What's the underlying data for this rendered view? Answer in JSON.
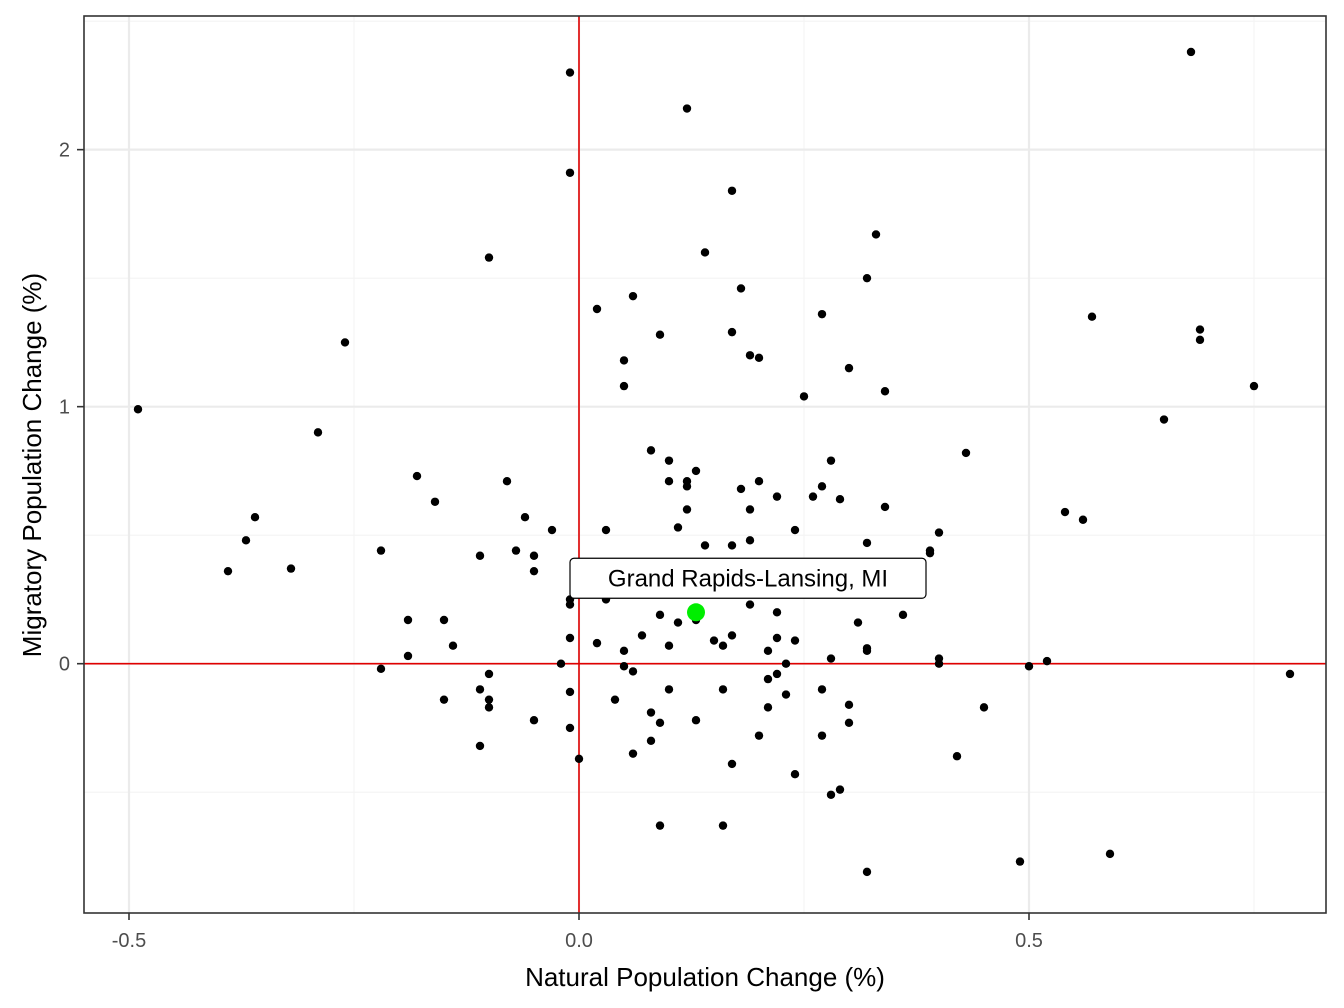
{
  "chart_data": {
    "type": "scatter",
    "title": "",
    "xlabel": "Natural Population Change (%)",
    "ylabel": "Migratory Population Change (%)",
    "xlim": [
      -0.55,
      0.83
    ],
    "ylim": [
      -0.97,
      2.52
    ],
    "x_ticks": [
      -0.5,
      0.0,
      0.5
    ],
    "x_tick_labels": [
      "-0.5",
      "0.0",
      "0.5"
    ],
    "y_ticks": [
      0,
      1,
      2
    ],
    "y_tick_labels": [
      "0",
      "1",
      "2"
    ],
    "grid": true,
    "reference_lines": {
      "x": 0,
      "y": 0,
      "color": "#e00000"
    },
    "point_color": "#000000",
    "highlight": {
      "label": "Grand Rapids-Lansing, MI",
      "x": 0.13,
      "y": 0.2,
      "color": "#00ee00"
    },
    "points": [
      [
        -0.49,
        0.99
      ],
      [
        -0.39,
        0.36
      ],
      [
        -0.37,
        0.48
      ],
      [
        -0.36,
        0.57
      ],
      [
        -0.32,
        0.37
      ],
      [
        -0.29,
        0.9
      ],
      [
        -0.26,
        1.25
      ],
      [
        -0.22,
        0.44
      ],
      [
        -0.22,
        -0.02
      ],
      [
        -0.19,
        0.17
      ],
      [
        -0.19,
        0.03
      ],
      [
        -0.18,
        0.73
      ],
      [
        -0.16,
        0.63
      ],
      [
        -0.15,
        0.17
      ],
      [
        -0.15,
        -0.14
      ],
      [
        -0.14,
        0.07
      ],
      [
        -0.11,
        0.42
      ],
      [
        -0.11,
        -0.1
      ],
      [
        -0.11,
        -0.32
      ],
      [
        -0.1,
        1.58
      ],
      [
        -0.1,
        -0.04
      ],
      [
        -0.1,
        -0.14
      ],
      [
        -0.1,
        -0.17
      ],
      [
        -0.08,
        0.71
      ],
      [
        -0.07,
        0.44
      ],
      [
        -0.06,
        0.57
      ],
      [
        -0.05,
        0.42
      ],
      [
        -0.05,
        0.36
      ],
      [
        -0.05,
        -0.22
      ],
      [
        -0.03,
        0.52
      ],
      [
        -0.02,
        0.0
      ],
      [
        -0.01,
        2.3
      ],
      [
        -0.01,
        1.91
      ],
      [
        -0.01,
        0.25
      ],
      [
        -0.01,
        0.23
      ],
      [
        -0.01,
        0.1
      ],
      [
        -0.01,
        -0.11
      ],
      [
        -0.01,
        -0.25
      ],
      [
        0.0,
        -0.37
      ],
      [
        0.02,
        1.38
      ],
      [
        0.02,
        0.08
      ],
      [
        0.03,
        0.52
      ],
      [
        0.03,
        0.25
      ],
      [
        0.04,
        -0.14
      ],
      [
        0.05,
        1.18
      ],
      [
        0.05,
        1.08
      ],
      [
        0.05,
        0.05
      ],
      [
        0.05,
        -0.01
      ],
      [
        0.06,
        1.43
      ],
      [
        0.06,
        -0.03
      ],
      [
        0.06,
        -0.35
      ],
      [
        0.07,
        0.11
      ],
      [
        0.08,
        0.83
      ],
      [
        0.08,
        -0.19
      ],
      [
        0.08,
        -0.3
      ],
      [
        0.09,
        1.28
      ],
      [
        0.09,
        0.19
      ],
      [
        0.09,
        -0.23
      ],
      [
        0.09,
        -0.63
      ],
      [
        0.1,
        0.79
      ],
      [
        0.1,
        0.71
      ],
      [
        0.1,
        0.07
      ],
      [
        0.1,
        -0.1
      ],
      [
        0.11,
        0.53
      ],
      [
        0.11,
        0.16
      ],
      [
        0.12,
        2.16
      ],
      [
        0.12,
        0.71
      ],
      [
        0.12,
        0.69
      ],
      [
        0.12,
        0.6
      ],
      [
        0.13,
        0.75
      ],
      [
        0.13,
        0.17
      ],
      [
        0.13,
        -0.22
      ],
      [
        0.14,
        1.6
      ],
      [
        0.14,
        0.46
      ],
      [
        0.15,
        0.09
      ],
      [
        0.16,
        0.07
      ],
      [
        0.16,
        -0.1
      ],
      [
        0.16,
        -0.63
      ],
      [
        0.17,
        1.84
      ],
      [
        0.17,
        1.29
      ],
      [
        0.17,
        0.46
      ],
      [
        0.17,
        0.11
      ],
      [
        0.17,
        -0.39
      ],
      [
        0.18,
        1.46
      ],
      [
        0.18,
        0.68
      ],
      [
        0.19,
        1.2
      ],
      [
        0.19,
        0.6
      ],
      [
        0.19,
        0.48
      ],
      [
        0.19,
        0.23
      ],
      [
        0.2,
        1.19
      ],
      [
        0.2,
        0.71
      ],
      [
        0.2,
        -0.28
      ],
      [
        0.21,
        0.05
      ],
      [
        0.21,
        -0.06
      ],
      [
        0.21,
        -0.17
      ],
      [
        0.22,
        0.65
      ],
      [
        0.22,
        0.2
      ],
      [
        0.22,
        0.1
      ],
      [
        0.22,
        -0.04
      ],
      [
        0.23,
        0.0
      ],
      [
        0.23,
        -0.12
      ],
      [
        0.24,
        0.52
      ],
      [
        0.24,
        0.09
      ],
      [
        0.24,
        -0.43
      ],
      [
        0.25,
        1.04
      ],
      [
        0.26,
        0.65
      ],
      [
        0.27,
        1.36
      ],
      [
        0.27,
        0.69
      ],
      [
        0.27,
        -0.1
      ],
      [
        0.27,
        -0.28
      ],
      [
        0.28,
        0.79
      ],
      [
        0.28,
        0.02
      ],
      [
        0.28,
        -0.51
      ],
      [
        0.29,
        0.64
      ],
      [
        0.29,
        -0.49
      ],
      [
        0.3,
        1.15
      ],
      [
        0.3,
        -0.16
      ],
      [
        0.3,
        -0.23
      ],
      [
        0.31,
        0.16
      ],
      [
        0.32,
        1.5
      ],
      [
        0.32,
        0.47
      ],
      [
        0.32,
        0.06
      ],
      [
        0.32,
        0.05
      ],
      [
        0.32,
        -0.81
      ],
      [
        0.33,
        1.67
      ],
      [
        0.34,
        1.06
      ],
      [
        0.34,
        0.61
      ],
      [
        0.36,
        0.19
      ],
      [
        0.37,
        0.27
      ],
      [
        0.39,
        0.44
      ],
      [
        0.39,
        0.43
      ],
      [
        0.4,
        0.51
      ],
      [
        0.4,
        0.02
      ],
      [
        0.4,
        0.0
      ],
      [
        0.42,
        -0.36
      ],
      [
        0.43,
        0.82
      ],
      [
        0.45,
        -0.17
      ],
      [
        0.49,
        -0.77
      ],
      [
        0.5,
        -0.01
      ],
      [
        0.52,
        0.01
      ],
      [
        0.54,
        0.59
      ],
      [
        0.56,
        0.56
      ],
      [
        0.57,
        1.35
      ],
      [
        0.59,
        -0.74
      ],
      [
        0.65,
        0.95
      ],
      [
        0.68,
        2.38
      ],
      [
        0.69,
        1.3
      ],
      [
        0.69,
        1.26
      ],
      [
        0.75,
        1.08
      ],
      [
        0.79,
        -0.04
      ]
    ]
  }
}
